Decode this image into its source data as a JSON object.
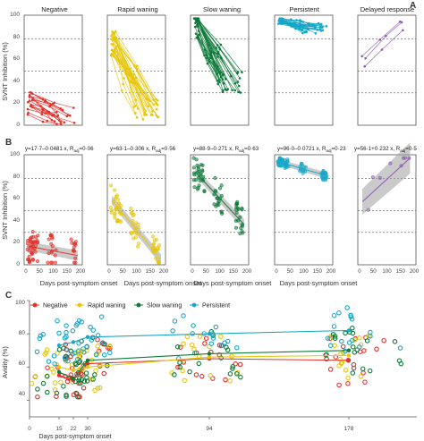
{
  "panel_letters": {
    "a": "A",
    "b": "B",
    "c": "C"
  },
  "panelA": {
    "ylabel": "SVNT Inhibition (%)",
    "yticks": [
      "0",
      "20",
      "40",
      "60",
      "80",
      "100"
    ],
    "groups": [
      {
        "title": "Negative",
        "color": "#e2302a"
      },
      {
        "title": "Rapid waning",
        "color": "#e8c60c"
      },
      {
        "title": "Slow waning",
        "color": "#0f7a3a"
      },
      {
        "title": "Persistent",
        "color": "#16a7c9"
      },
      {
        "title": "Delayed response",
        "color": "#8e5bb5"
      }
    ]
  },
  "panelB": {
    "ylabel": "SVNT Inhibition (%)",
    "xlabel": "Days post-symptom onset",
    "yticks": [
      "0",
      "20",
      "40",
      "60",
      "80",
      "100"
    ],
    "xticks": [
      "0",
      "50",
      "100",
      "150",
      "200"
    ],
    "equations": [
      {
        "main": "y=17·7–0·0481 x, R",
        "tail": "=0·06"
      },
      {
        "main": "y=63·1–0·306 x, R",
        "tail": "=0·56"
      },
      {
        "main": "y=88·9–0·271 x, R",
        "tail": "=0·63"
      },
      {
        "main": "y=96·0–0·0721 x, R",
        "tail": "=0·23"
      },
      {
        "main": "y=56·1+0·232 x, R",
        "tail": "=0·5"
      }
    ],
    "r2_sup": "2",
    "r2_sub": "adj"
  },
  "panelC": {
    "ylabel": "Avidity (%)",
    "xlabel": "Days post-symptom onset",
    "yticks": [
      "40",
      "60",
      "80",
      "100"
    ],
    "xticks": [
      "0",
      "15",
      "22",
      "30",
      "94",
      "178"
    ],
    "legend": [
      {
        "label": "Negative",
        "color": "#e2302a"
      },
      {
        "label": "Rapid waning",
        "color": "#e8c60c"
      },
      {
        "label": "Slow waning",
        "color": "#0f7a3a"
      },
      {
        "label": "Persistent",
        "color": "#16a7c9"
      }
    ]
  },
  "chart_data": [
    {
      "type": "line",
      "panel": "A",
      "ylim": [
        0,
        100
      ],
      "xlim": [
        0,
        200
      ],
      "reference_lines_y": [
        30,
        50,
        80
      ],
      "series": [
        {
          "name": "Negative",
          "trend_start": 20,
          "trend_end": 8
        },
        {
          "name": "Rapid waning",
          "trend_start": 75,
          "trend_end": 15
        },
        {
          "name": "Slow waning",
          "trend_start": 92,
          "trend_end": 40
        },
        {
          "name": "Persistent",
          "trend_start": 97,
          "trend_end": 90
        },
        {
          "name": "Delayed response",
          "trend_start": 60,
          "trend_end": 97
        }
      ]
    },
    {
      "type": "scatter",
      "panel": "B",
      "ylim": [
        0,
        100
      ],
      "xlim": [
        0,
        200
      ],
      "reference_lines_y": [
        30,
        50,
        80
      ],
      "series": [
        {
          "name": "Negative",
          "intercept": 17.7,
          "slope": -0.0481,
          "r2_adj": 0.06
        },
        {
          "name": "Rapid waning",
          "intercept": 63.1,
          "slope": -0.306,
          "r2_adj": 0.56
        },
        {
          "name": "Slow waning",
          "intercept": 88.9,
          "slope": -0.271,
          "r2_adj": 0.63
        },
        {
          "name": "Persistent",
          "intercept": 96.0,
          "slope": -0.0721,
          "r2_adj": 0.23
        },
        {
          "name": "Delayed response",
          "intercept": 56.1,
          "slope": 0.232,
          "r2_adj": 0.5
        }
      ]
    },
    {
      "type": "scatter",
      "panel": "C",
      "ylim": [
        40,
        100
      ],
      "x_ticks": [
        0,
        15,
        22,
        30,
        94,
        178
      ],
      "series": [
        {
          "name": "Negative",
          "mean_x": [
            15,
            22,
            30,
            94,
            178
          ],
          "mean_y": [
            55,
            52,
            62,
            65,
            64
          ]
        },
        {
          "name": "Rapid waning",
          "mean_x": [
            15,
            22,
            30,
            94,
            178
          ],
          "mean_y": [
            60,
            58,
            60,
            66,
            67
          ]
        },
        {
          "name": "Slow waning",
          "mean_x": [
            15,
            22,
            30,
            94,
            178
          ],
          "mean_y": [
            57,
            53,
            64,
            68,
            70
          ]
        },
        {
          "name": "Persistent",
          "mean_x": [
            15,
            22,
            30,
            94,
            178
          ],
          "mean_y": [
            73,
            75,
            78,
            80,
            82
          ]
        }
      ]
    }
  ]
}
